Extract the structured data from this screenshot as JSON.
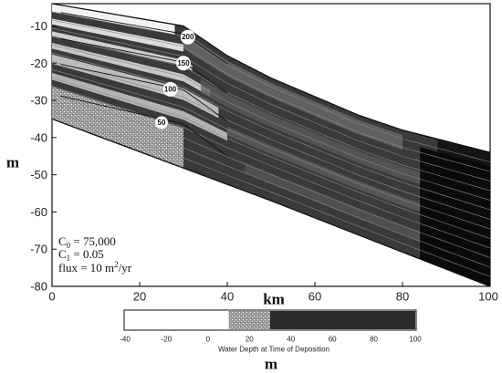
{
  "chart_data": {
    "type": "heatmap",
    "title": "",
    "xlabel": "km",
    "ylabel": "m",
    "xlim": [
      0,
      100
    ],
    "ylim": [
      -80,
      -4
    ],
    "x_ticks": [
      0,
      20,
      40,
      60,
      80,
      100
    ],
    "y_ticks": [
      -10,
      -20,
      -30,
      -40,
      -50,
      -60,
      -70,
      -80
    ],
    "x_tick_labels": [
      "0",
      "20",
      "40",
      "60",
      "80",
      "100"
    ],
    "y_tick_labels": [
      "-10",
      "-20",
      "-30",
      "-40",
      "-50",
      "-60",
      "-70",
      "-80"
    ],
    "grid": false,
    "profile_top": [
      [
        0,
        -4
      ],
      [
        10,
        -6
      ],
      [
        20,
        -8
      ],
      [
        30,
        -10
      ],
      [
        40,
        -18
      ],
      [
        50,
        -24
      ],
      [
        60,
        -29
      ],
      [
        70,
        -34
      ],
      [
        80,
        -38
      ],
      [
        90,
        -41
      ],
      [
        100,
        -44
      ]
    ],
    "profile_base": [
      [
        0,
        -35
      ],
      [
        50,
        -57
      ],
      [
        100,
        -80
      ]
    ],
    "contours": [
      {
        "label": "200",
        "label_x": 31,
        "label_y": -13
      },
      {
        "label": "150",
        "label_x": 30,
        "label_y": -20
      },
      {
        "label": "100",
        "label_x": 27,
        "label_y": -27
      },
      {
        "label": "50",
        "label_x": 25,
        "label_y": -36
      }
    ],
    "contour_label_texts": [
      "200",
      "150",
      "100",
      "50"
    ],
    "parameters": [
      {
        "name": "C",
        "sub": "0",
        "value": " = 75,000"
      },
      {
        "name": "C",
        "sub": "1",
        "value": " = 0.05"
      },
      {
        "name": "flux = 10 m",
        "sup": "2",
        "value": "/yr"
      }
    ],
    "colorbar": {
      "title": "Water Depth at Time of Deposition",
      "unit": "m",
      "range": [
        -40,
        100
      ],
      "ticks": [
        -40,
        -20,
        0,
        20,
        40,
        60,
        80,
        100
      ],
      "tick_labels": [
        "-40",
        "-20",
        "0",
        "20",
        "40",
        "60",
        "80",
        "100"
      ],
      "bands": [
        {
          "from": -40,
          "to": 10,
          "color": "#ffffff"
        },
        {
          "from": 10,
          "to": 30,
          "color": "#a8a8a8"
        },
        {
          "from": 30,
          "to": 100,
          "color": "#2a2a2a"
        }
      ]
    }
  }
}
